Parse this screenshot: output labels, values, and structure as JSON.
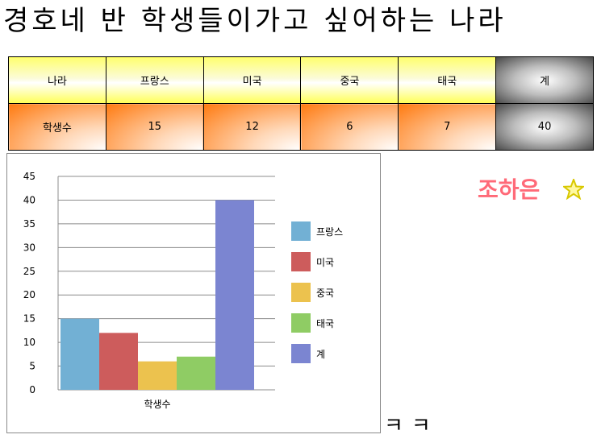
{
  "title": "경호네 반 학생들이가고 싶어하는 나라",
  "table": {
    "header": [
      "나라",
      "프랑스",
      "미국",
      "중국",
      "태국",
      "계"
    ],
    "row": [
      "학생수",
      "15",
      "12",
      "6",
      "7",
      "40"
    ]
  },
  "author": "조하은",
  "footer_text": "ㅋㅋ",
  "chart_data": {
    "type": "bar",
    "categories": [
      "학생수"
    ],
    "series": [
      {
        "name": "프랑스",
        "values": [
          15
        ],
        "color": "#72b0d4"
      },
      {
        "name": "미국",
        "values": [
          12
        ],
        "color": "#cd5c5c"
      },
      {
        "name": "중국",
        "values": [
          6
        ],
        "color": "#ecc24e"
      },
      {
        "name": "태국",
        "values": [
          7
        ],
        "color": "#8fcc64"
      },
      {
        "name": "계",
        "values": [
          40
        ],
        "color": "#7b85d1"
      }
    ],
    "ylim": [
      0,
      45
    ],
    "yticks": [
      "0",
      "5",
      "10",
      "15",
      "20",
      "25",
      "30",
      "35",
      "40",
      "45"
    ],
    "grid": true,
    "legend": "right"
  }
}
